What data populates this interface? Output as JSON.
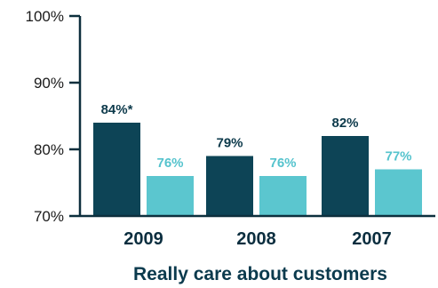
{
  "chart_data": {
    "type": "bar",
    "title": "",
    "xlabel": "Really care about customers",
    "ylabel": "",
    "ylim": [
      70,
      100
    ],
    "yticks": [
      70,
      80,
      90,
      100
    ],
    "ytick_labels": [
      "70%",
      "80%",
      "90%",
      "100%"
    ],
    "grid": false,
    "legend": "none",
    "categories": [
      "2009",
      "2008",
      "2007"
    ],
    "series": [
      {
        "values": [
          84,
          79,
          82
        ],
        "labels": [
          "84%*",
          "79%",
          "82%"
        ],
        "color": "#0d4456",
        "label_color": "#0d3a4b"
      },
      {
        "values": [
          76,
          76,
          77
        ],
        "labels": [
          "76%",
          "76%",
          "77%"
        ],
        "color": "#5bc6cf",
        "label_color": "#55c3cd"
      }
    ]
  }
}
